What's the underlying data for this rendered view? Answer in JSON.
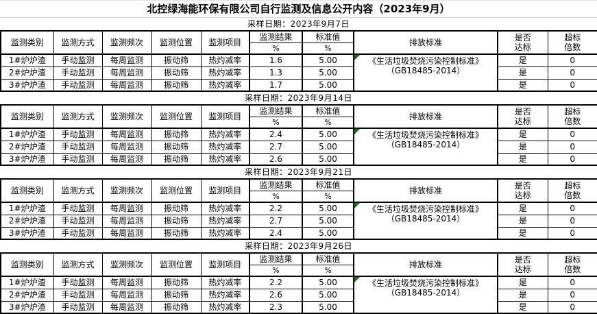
{
  "page_title": "北控绿海能环保有限公司自行监测及信息公开内容（2023年9月）",
  "columns": {
    "category": "监测类别",
    "method": "监测方式",
    "frequency": "监测频次",
    "location": "监测位置",
    "item": "监测项目",
    "result": "监测结果",
    "standard_value": "标准值",
    "unit": "%",
    "emission_standard": "排放标准",
    "compliance": "是否\n达标",
    "exceedance": "超标\n倍数"
  },
  "sections": [
    {
      "sampling_date": "采样日期：2023年9月7日",
      "emission_standard": "《生活垃圾焚烧污染控制标准》\n（GB18485-2014）",
      "rows": [
        {
          "category": "1#炉炉渣",
          "method": "手动监测",
          "frequency": "每周监测",
          "location": "振动筛",
          "item": "热灼减率",
          "result": "1.6",
          "standard_value": "5.00",
          "compliant": "是",
          "exceedance": "0"
        },
        {
          "category": "2#炉炉渣",
          "method": "手动监测",
          "frequency": "每周监测",
          "location": "振动筛",
          "item": "热灼减率",
          "result": "1.3",
          "standard_value": "5.00",
          "compliant": "是",
          "exceedance": "0"
        },
        {
          "category": "3#炉炉渣",
          "method": "手动监测",
          "frequency": "每周监测",
          "location": "振动筛",
          "item": "热灼减率",
          "result": "1.7",
          "standard_value": "5.00",
          "compliant": "是",
          "exceedance": "0"
        }
      ]
    },
    {
      "sampling_date": "采样日期：2023年9月14日",
      "emission_standard": "《生活垃圾焚烧污染控制标准》\n（GB18485-2014）",
      "rows": [
        {
          "category": "1#炉炉渣",
          "method": "手动监测",
          "frequency": "每周监测",
          "location": "振动筛",
          "item": "热灼减率",
          "result": "2.4",
          "standard_value": "5.00",
          "compliant": "是",
          "exceedance": "0"
        },
        {
          "category": "2#炉炉渣",
          "method": "手动监测",
          "frequency": "每周监测",
          "location": "振动筛",
          "item": "热灼减率",
          "result": "2.7",
          "standard_value": "5.00",
          "compliant": "是",
          "exceedance": "0"
        },
        {
          "category": "3#炉炉渣",
          "method": "手动监测",
          "frequency": "每周监测",
          "location": "振动筛",
          "item": "热灼减率",
          "result": "2.6",
          "standard_value": "5.00",
          "compliant": "是",
          "exceedance": "0"
        }
      ]
    },
    {
      "sampling_date": "采样日期：2023年9月21日",
      "emission_standard": "《生活垃圾焚烧污染控制标准》\n（GB18485-2014）",
      "rows": [
        {
          "category": "1#炉炉渣",
          "method": "手动监测",
          "frequency": "每周监测",
          "location": "振动筛",
          "item": "热灼减率",
          "result": "2.2",
          "standard_value": "5.00",
          "compliant": "是",
          "exceedance": "0"
        },
        {
          "category": "2#炉炉渣",
          "method": "手动监测",
          "frequency": "每周监测",
          "location": "振动筛",
          "item": "热灼减率",
          "result": "2.7",
          "standard_value": "5.00",
          "compliant": "是",
          "exceedance": "0"
        },
        {
          "category": "3#炉炉渣",
          "method": "手动监测",
          "frequency": "每周监测",
          "location": "振动筛",
          "item": "热灼减率",
          "result": "2.4",
          "standard_value": "5.00",
          "compliant": "是",
          "exceedance": "0"
        }
      ]
    },
    {
      "sampling_date": "采样日期：2023年9月26日",
      "emission_standard": "《生活垃圾焚烧污染控制标准》\n（GB18485-2014）",
      "rows": [
        {
          "category": "1#炉炉渣",
          "method": "手动监测",
          "frequency": "每周监测",
          "location": "振动筛",
          "item": "热灼减率",
          "result": "2.2",
          "standard_value": "5.00",
          "compliant": "是",
          "exceedance": "0"
        },
        {
          "category": "2#炉炉渣",
          "method": "手动监测",
          "frequency": "每周监测",
          "location": "振动筛",
          "item": "热灼减率",
          "result": "2.6",
          "standard_value": "5.00",
          "compliant": "是",
          "exceedance": "0"
        },
        {
          "category": "3#炉炉渣",
          "method": "手动监测",
          "frequency": "每周监测",
          "location": "振动筛",
          "item": "热灼减率",
          "result": "2.3",
          "standard_value": "5.00",
          "compliant": "是",
          "exceedance": "0"
        }
      ]
    }
  ]
}
